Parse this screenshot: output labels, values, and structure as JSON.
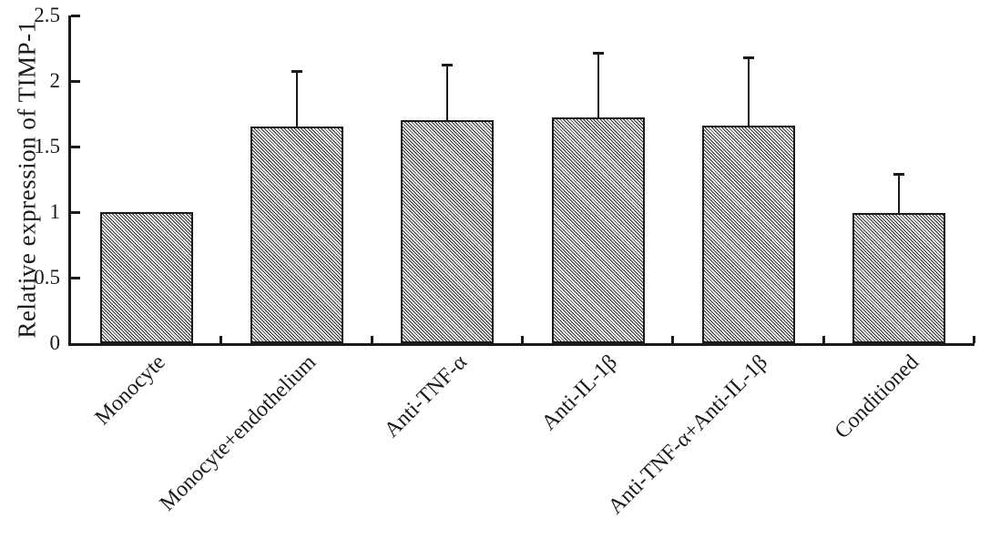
{
  "figure": {
    "background": "#ffffff",
    "ink_color": "#1a1a1a"
  },
  "chart_data": {
    "type": "bar",
    "title": "",
    "xlabel": "",
    "ylabel": "Relative expression of TIMP-1",
    "categories": [
      "Monocyte",
      "Monocyte+endothelium",
      "Anti-TNF-α",
      "Anti-IL-1β",
      "Anti-TNF-α+Anti-IL-1β",
      "Conditioned"
    ],
    "values": [
      1.0,
      1.65,
      1.7,
      1.72,
      1.66,
      0.99
    ],
    "errors_upper": [
      0,
      0.43,
      0.43,
      0.5,
      0.53,
      0.31
    ],
    "ylim": [
      0,
      2.5
    ],
    "yticks": [
      0,
      0.5,
      1,
      1.5,
      2,
      2.5
    ],
    "ytick_labels": [
      "0",
      "0.5",
      "1",
      "1.5",
      "2",
      "2.5"
    ],
    "grid": false,
    "legend": null,
    "bar_style": "diagonal-hatch",
    "error_bar_direction": "upper-only",
    "xlabel_rotation_deg": 45
  }
}
